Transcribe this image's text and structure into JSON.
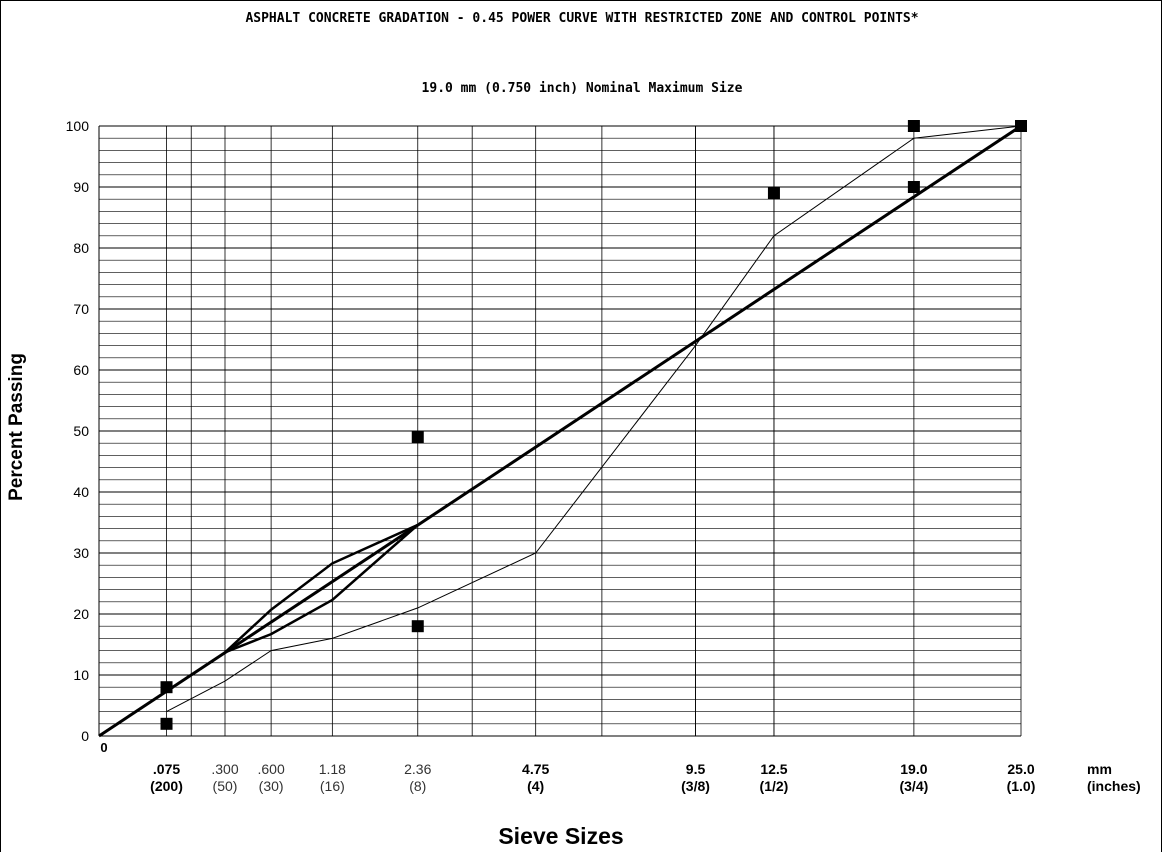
{
  "chart_data": {
    "type": "line",
    "title": "ASPHALT CONCRETE GRADATION - 0.45 POWER CURVE WITH RESTRICTED ZONE AND CONTROL POINTS*",
    "subtitle": "19.0 mm (0.750 inch) Nominal Maximum Size",
    "xlabel": "Sieve Sizes",
    "ylabel": "Percent Passing",
    "x_scale": "sieve size (mm) raised to the 0.45 power",
    "ylim": [
      0,
      100
    ],
    "y_ticks": [
      0,
      10,
      20,
      30,
      40,
      50,
      60,
      70,
      80,
      90,
      100
    ],
    "x_origin_label": "0",
    "x_ticks": [
      {
        "mm": ".075",
        "sieve": "(200)",
        "bold": true,
        "sieve_mm": 0.075
      },
      {
        "mm": ".300",
        "sieve": "(50)",
        "bold": false,
        "sieve_mm": 0.3
      },
      {
        "mm": ".600",
        "sieve": "(30)",
        "bold": false,
        "sieve_mm": 0.6
      },
      {
        "mm": "1.18",
        "sieve": "(16)",
        "bold": false,
        "sieve_mm": 1.18
      },
      {
        "mm": "2.36",
        "sieve": "(8)",
        "bold": false,
        "sieve_mm": 2.36
      },
      {
        "mm": "4.75",
        "sieve": "(4)",
        "bold": true,
        "sieve_mm": 4.75
      },
      {
        "mm": "9.5",
        "sieve": "(3/8)",
        "bold": true,
        "sieve_mm": 9.5
      },
      {
        "mm": "12.5",
        "sieve": "(1/2)",
        "bold": true,
        "sieve_mm": 12.5
      },
      {
        "mm": "19.0",
        "sieve": "(3/4)",
        "bold": true,
        "sieve_mm": 19.0
      },
      {
        "mm": "25.0",
        "sieve": "(1.0)",
        "bold": true,
        "sieve_mm": 25.0
      },
      {
        "mm": "mm",
        "sieve": "(inches)",
        "bold": true,
        "sieve_mm": null
      }
    ],
    "extra_gridlines_mm": [
      0.15,
      3.35,
      6.5,
      9.5,
      12.5
    ],
    "series": [
      {
        "style": "thick",
        "kind": "maximum density line",
        "points": [
          [
            0,
            0
          ],
          [
            25.0,
            100
          ]
        ]
      },
      {
        "style": "thin",
        "kind": "gradation",
        "points": [
          [
            0.075,
            4
          ],
          [
            0.3,
            9
          ],
          [
            0.6,
            14
          ],
          [
            1.18,
            16
          ],
          [
            2.36,
            21
          ],
          [
            4.75,
            30
          ],
          [
            9.5,
            64
          ],
          [
            12.5,
            82
          ],
          [
            19.0,
            98
          ],
          [
            25.0,
            100
          ]
        ]
      },
      {
        "style": "restricted-zone",
        "kind": "upper boundary",
        "points": [
          [
            0.3,
            13.7
          ],
          [
            0.6,
            20.7
          ],
          [
            1.18,
            28.3
          ],
          [
            2.36,
            34.6
          ]
        ]
      },
      {
        "style": "restricted-zone",
        "kind": "lower boundary",
        "points": [
          [
            0.3,
            13.7
          ],
          [
            0.6,
            16.7
          ],
          [
            1.18,
            22.3
          ],
          [
            2.36,
            34.6
          ]
        ]
      }
    ],
    "control_points": [
      [
        0.075,
        2
      ],
      [
        0.075,
        8
      ],
      [
        2.36,
        18
      ],
      [
        2.36,
        49
      ],
      [
        12.5,
        89
      ],
      [
        19.0,
        90
      ],
      [
        19.0,
        100
      ],
      [
        25.0,
        100
      ]
    ],
    "grid": true
  }
}
